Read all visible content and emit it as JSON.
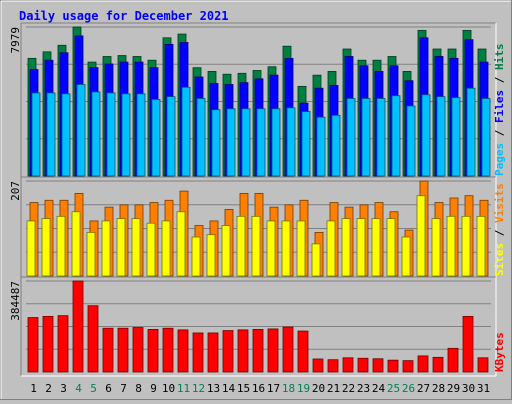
{
  "chart_data": {
    "type": "bar",
    "title": "Daily usage for December 2021",
    "categories": [
      "1",
      "2",
      "3",
      "4",
      "5",
      "6",
      "7",
      "8",
      "9",
      "10",
      "11",
      "12",
      "13",
      "14",
      "15",
      "16",
      "17",
      "18",
      "19",
      "20",
      "21",
      "22",
      "23",
      "24",
      "25",
      "26",
      "27",
      "28",
      "29",
      "30",
      "31"
    ],
    "weekend_days": [
      "4",
      "5",
      "11",
      "12",
      "18",
      "19",
      "25",
      "26"
    ],
    "panels": [
      {
        "id": "hits-files-pages",
        "max_label": "7979",
        "ymax": 7979,
        "series": [
          {
            "name": "Hits",
            "color": "#008040",
            "values": [
              6300,
              6650,
              7000,
              7979,
              6100,
              6400,
              6450,
              6400,
              6200,
              7400,
              7600,
              5800,
              5600,
              5450,
              5500,
              5650,
              5850,
              6950,
              4800,
              5400,
              5600,
              6800,
              6200,
              6200,
              6400,
              5600,
              7800,
              6800,
              6800,
              7800,
              6800
            ]
          },
          {
            "name": "Files",
            "color": "#0000ff",
            "values": [
              5700,
              6200,
              6600,
              7500,
              5800,
              6000,
              6100,
              6100,
              5800,
              7050,
              7150,
              5300,
              4950,
              4900,
              5000,
              5200,
              5400,
              6300,
              3900,
              4700,
              4850,
              6400,
              5900,
              5600,
              5900,
              5100,
              7400,
              6400,
              6300,
              7300,
              6100
            ]
          },
          {
            "name": "Pages",
            "color": "#00c0ff",
            "values": [
              4450,
              4450,
              4400,
              4900,
              4500,
              4450,
              4400,
              4400,
              4100,
              4250,
              4750,
              4150,
              3550,
              3600,
              3600,
              3600,
              3600,
              3650,
              3450,
              3150,
              3250,
              4150,
              4150,
              4150,
              4300,
              3750,
              4350,
              4250,
              4200,
              4700,
              4150
            ]
          }
        ],
        "legend": [
          "Pages",
          "Files",
          "Hits"
        ]
      },
      {
        "id": "visits-sites",
        "max_label": "207",
        "ymax": 207,
        "series": [
          {
            "name": "Visits",
            "color": "#ff8000",
            "values": [
              160,
              165,
              165,
              180,
              120,
              150,
              155,
              155,
              160,
              165,
              185,
              110,
              120,
              145,
              180,
              180,
              150,
              155,
              165,
              95,
              160,
              150,
              155,
              160,
              140,
              100,
              207,
              160,
              170,
              175,
              165
            ]
          },
          {
            "name": "Sites",
            "color": "#ffff00",
            "values": [
              120,
              125,
              130,
              140,
              95,
              120,
              125,
              125,
              115,
              120,
              140,
              85,
              90,
              110,
              130,
              130,
              120,
              120,
              120,
              70,
              120,
              125,
              125,
              125,
              125,
              85,
              175,
              125,
              130,
              130,
              130
            ]
          }
        ],
        "legend": [
          "Sites",
          "Visits"
        ]
      },
      {
        "id": "kbytes",
        "max_label": "384487",
        "ymax": 384487,
        "series": [
          {
            "name": "KBytes",
            "color": "#ff0000",
            "values": [
              230000,
              235000,
              238000,
              384487,
              280000,
              185000,
              185000,
              188000,
              180000,
              185000,
              178000,
              165000,
              165000,
              175000,
              178000,
              180000,
              182000,
              190000,
              173000,
              55000,
              52000,
              60000,
              58000,
              56000,
              50000,
              48000,
              68000,
              62000,
              100000,
              235000,
              60000
            ]
          }
        ],
        "legend": [
          "KBytes"
        ]
      }
    ]
  }
}
